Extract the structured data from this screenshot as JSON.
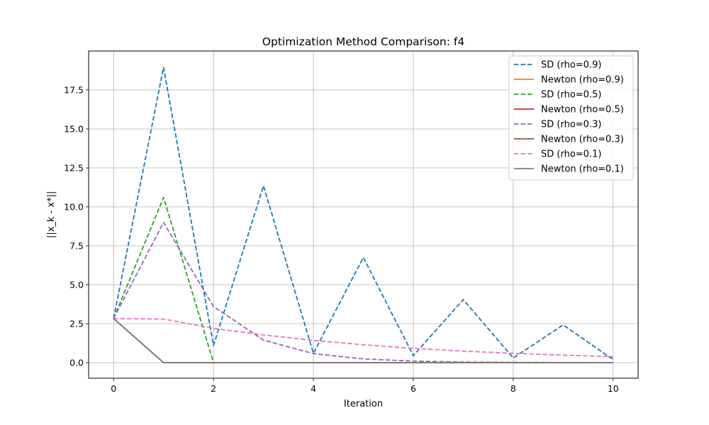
{
  "chart_data": {
    "type": "line",
    "title": "Optimization Method Comparison: f4",
    "xlabel": "Iteration",
    "ylabel": "||x_k - x*||",
    "xlim": [
      -0.5,
      10.5
    ],
    "ylim": [
      -1.0,
      20.0
    ],
    "xticks": [
      0,
      2,
      4,
      6,
      8,
      10
    ],
    "xtick_labels": [
      "0",
      "2",
      "4",
      "6",
      "8",
      "10"
    ],
    "yticks": [
      0,
      2.5,
      5,
      7.5,
      10,
      12.5,
      15,
      17.5
    ],
    "ytick_labels": [
      "0.0",
      "2.5",
      "5.0",
      "7.5",
      "10.0",
      "12.5",
      "15.0",
      "17.5"
    ],
    "grid": true,
    "legend_position": "top-right",
    "series": [
      {
        "name": "SD (rho=0.9)",
        "color": "#1f77b4",
        "style": "dashed",
        "x": [
          0,
          1,
          2,
          3,
          4,
          5,
          6,
          7,
          8,
          9,
          10
        ],
        "y": [
          2.83,
          18.95,
          1.1,
          11.35,
          0.6,
          6.75,
          0.45,
          4.05,
          0.3,
          2.42,
          0.2
        ]
      },
      {
        "name": "Newton (rho=0.9)",
        "color": "#ff7f0e",
        "style": "solid",
        "x": [
          0,
          1,
          2,
          3,
          4,
          5,
          6,
          7,
          8,
          9,
          10
        ],
        "y": [
          2.83,
          0,
          0,
          0,
          0,
          0,
          0,
          0,
          0,
          0,
          0
        ]
      },
      {
        "name": "SD (rho=0.5)",
        "color": "#2ca02c",
        "style": "dashed",
        "x": [
          0,
          1,
          2
        ],
        "y": [
          2.83,
          10.6,
          0
        ]
      },
      {
        "name": "Newton (rho=0.5)",
        "color": "#d62728",
        "style": "solid",
        "x": [
          0,
          1,
          2,
          3,
          4,
          5,
          6,
          7,
          8,
          9,
          10
        ],
        "y": [
          2.83,
          0,
          0,
          0,
          0,
          0,
          0,
          0,
          0,
          0,
          0
        ]
      },
      {
        "name": "SD (rho=0.3)",
        "color": "#9467bd",
        "style": "dashed",
        "x": [
          0,
          1,
          2,
          3,
          4,
          5,
          6,
          7,
          8,
          9,
          10
        ],
        "y": [
          2.83,
          9.0,
          3.6,
          1.45,
          0.58,
          0.24,
          0.1,
          0.04,
          0.02,
          0.01,
          0.0
        ]
      },
      {
        "name": "Newton (rho=0.3)",
        "color": "#8c564b",
        "style": "solid",
        "x": [
          0,
          1,
          2,
          3,
          4,
          5,
          6,
          7,
          8,
          9,
          10
        ],
        "y": [
          2.83,
          0,
          0,
          0,
          0,
          0,
          0,
          0,
          0,
          0,
          0
        ]
      },
      {
        "name": "SD (rho=0.1)",
        "color": "#e377c2",
        "style": "dashed",
        "x": [
          0,
          1,
          2,
          3,
          4,
          5,
          6,
          7,
          8,
          9,
          10
        ],
        "y": [
          2.83,
          2.8,
          2.2,
          1.78,
          1.43,
          1.15,
          0.92,
          0.74,
          0.6,
          0.48,
          0.39
        ]
      },
      {
        "name": "Newton (rho=0.1)",
        "color": "#7f7f7f",
        "style": "solid",
        "x": [
          0,
          1,
          2,
          3,
          4,
          5,
          6,
          7,
          8,
          9,
          10
        ],
        "y": [
          2.83,
          0,
          0,
          0,
          0,
          0,
          0,
          0,
          0,
          0,
          0
        ]
      }
    ]
  }
}
